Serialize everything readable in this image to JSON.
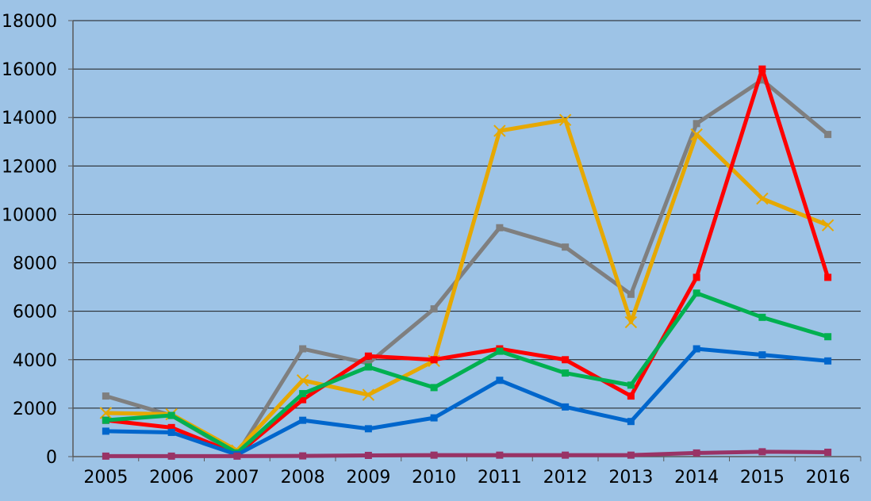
{
  "chart_data": {
    "type": "line",
    "title": "",
    "xlabel": "",
    "ylabel": "",
    "x": [
      "2005",
      "2006",
      "2007",
      "2008",
      "2009",
      "2010",
      "2011",
      "2012",
      "2013",
      "2014",
      "2015",
      "2016"
    ],
    "ylim": [
      0,
      18000
    ],
    "yticks": [
      0,
      2000,
      4000,
      6000,
      8000,
      10000,
      12000,
      14000,
      16000,
      18000
    ],
    "grid": true,
    "legend": "none",
    "background": "#9dc3e6",
    "series": [
      {
        "color": "#7f7f7f",
        "marker": "square",
        "values": [
          2500,
          1700,
          100,
          4450,
          3850,
          6100,
          9450,
          8650,
          6700,
          13750,
          15550,
          13300
        ]
      },
      {
        "color": "#e6a800",
        "marker": "x",
        "values": [
          1800,
          1750,
          250,
          3150,
          2550,
          3950,
          13450,
          13900,
          5550,
          13300,
          10650,
          9550
        ]
      },
      {
        "color": "#ff0000",
        "marker": "square",
        "values": [
          1500,
          1200,
          100,
          2350,
          4150,
          4000,
          4450,
          4000,
          2500,
          7400,
          16000,
          7400
        ]
      },
      {
        "color": "#00b050",
        "marker": "square",
        "values": [
          1500,
          1700,
          150,
          2600,
          3700,
          2850,
          4350,
          3450,
          2950,
          6750,
          5750,
          4950
        ]
      },
      {
        "color": "#0066cc",
        "marker": "square",
        "values": [
          1050,
          1000,
          80,
          1500,
          1150,
          1600,
          3150,
          2050,
          1450,
          4450,
          4200,
          3950
        ]
      },
      {
        "color": "#993366",
        "marker": "square",
        "values": [
          20,
          20,
          20,
          30,
          50,
          60,
          60,
          60,
          60,
          150,
          200,
          180
        ]
      }
    ]
  }
}
